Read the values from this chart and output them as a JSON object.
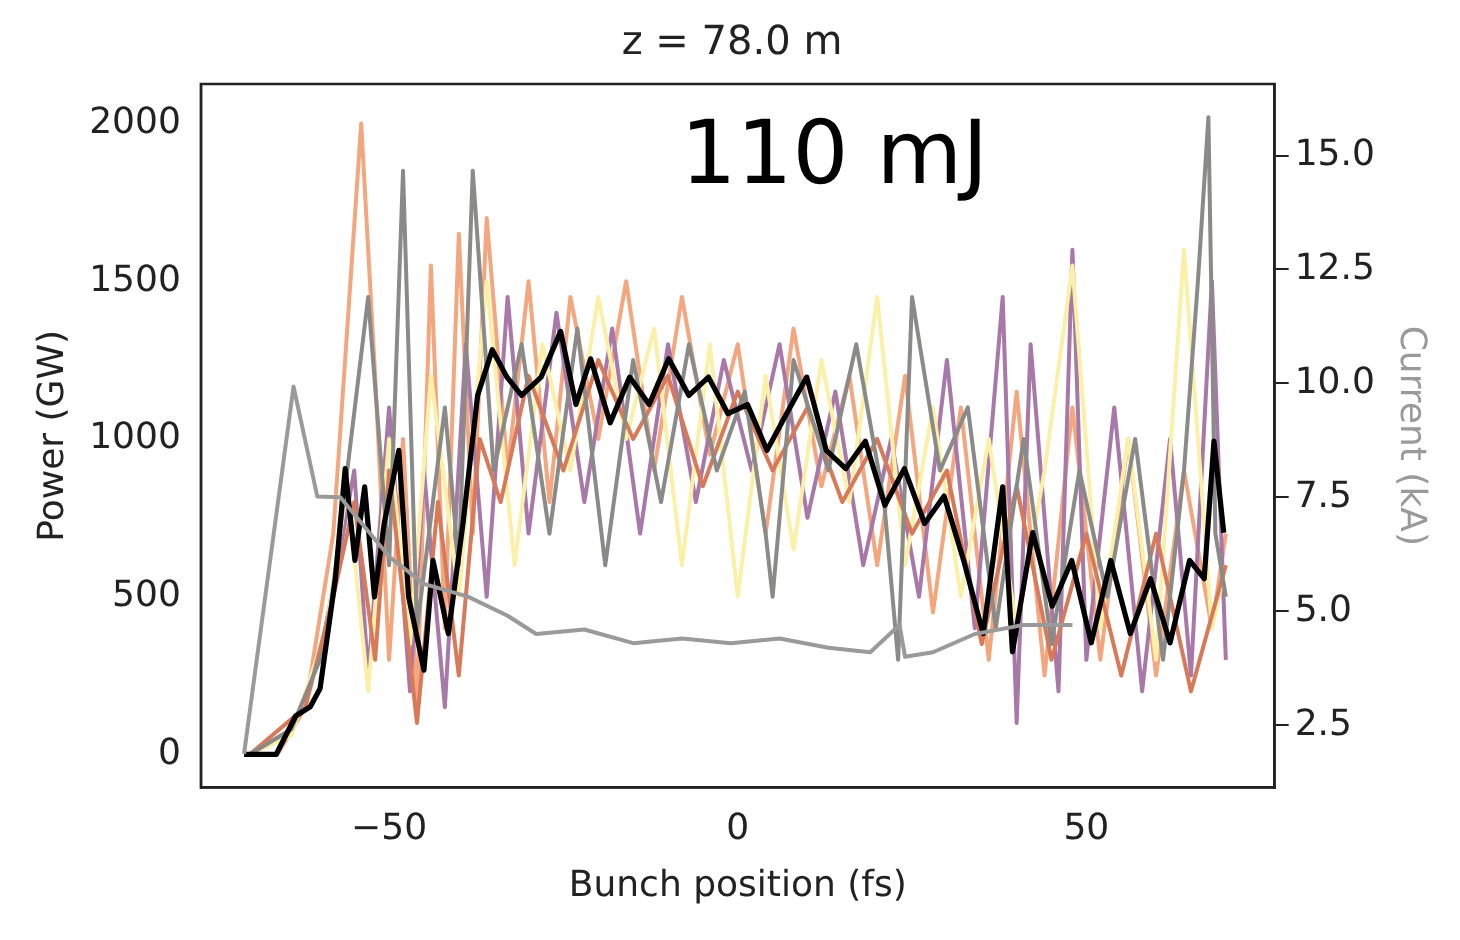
{
  "chart_data": {
    "type": "line",
    "title": "z = 78.0 m",
    "xlabel": "Bunch position (fs)",
    "ylabel": "Power (GW)",
    "y2label": "Current (kA)",
    "annotations": [
      "110 mJ"
    ],
    "xlim": [
      -77,
      77
    ],
    "xticks": [
      {
        "value": -50,
        "label": "−50"
      },
      0,
      50
    ],
    "ylim": [
      -105,
      2125
    ],
    "yticks": [
      0,
      500,
      1000,
      1500,
      2000
    ],
    "y2lim": [
      1.13,
      16.57
    ],
    "y2ticks": [
      2.5,
      {
        "value": 5,
        "label": "5.0"
      },
      7.5,
      {
        "value": 10,
        "label": "10.0"
      },
      12.5,
      {
        "value": 15,
        "label": "15.0"
      }
    ],
    "grid": false,
    "legend": false,
    "marker": "none",
    "line_style": "solid",
    "series": [
      {
        "color": "#f4a77f",
        "x": [
          -70,
          -66,
          -62,
          -58,
          -56,
          -54,
          -52,
          -50,
          -48,
          -46,
          -44,
          -42,
          -40,
          -38,
          -36,
          -33,
          -30,
          -27,
          -24,
          -20,
          -16,
          -12,
          -8,
          -4,
          0,
          4,
          8,
          12,
          16,
          20,
          24,
          28,
          32,
          36,
          40,
          44,
          48,
          52,
          56,
          60,
          64,
          68,
          70
        ],
        "values": [
          0,
          0,
          150,
          700,
          1350,
          2000,
          1200,
          300,
          1000,
          150,
          1550,
          400,
          1650,
          700,
          1700,
          900,
          1500,
          800,
          1450,
          1000,
          1500,
          900,
          1450,
          950,
          1300,
          700,
          1350,
          850,
          1200,
          600,
          1200,
          450,
          1100,
          300,
          1150,
          250,
          1100,
          300,
          1000,
          250,
          900,
          400,
          700
        ]
      },
      {
        "color": "#a878a8",
        "x": [
          -70,
          -64,
          -60,
          -57,
          -55,
          -53,
          -50,
          -47,
          -45,
          -42,
          -39,
          -36,
          -33,
          -30,
          -26,
          -22,
          -18,
          -14,
          -10,
          -6,
          -2,
          2,
          6,
          10,
          14,
          18,
          22,
          26,
          30,
          34,
          38,
          40,
          42,
          46,
          48,
          50,
          54,
          58,
          62,
          65,
          68,
          70
        ],
        "values": [
          0,
          80,
          300,
          650,
          900,
          250,
          1100,
          200,
          900,
          150,
          1300,
          500,
          1450,
          700,
          1400,
          800,
          1350,
          700,
          1300,
          800,
          1250,
          900,
          1300,
          750,
          1150,
          600,
          1000,
          500,
          1250,
          400,
          1450,
          100,
          1300,
          200,
          1600,
          300,
          1100,
          200,
          1000,
          250,
          1500,
          300
        ]
      },
      {
        "color": "#fbf0a8",
        "x": [
          -70,
          -64,
          -59,
          -56,
          -53,
          -50,
          -47,
          -44,
          -40,
          -36,
          -32,
          -28,
          -24,
          -20,
          -16,
          -12,
          -8,
          -4,
          0,
          4,
          8,
          12,
          16,
          20,
          24,
          28,
          32,
          36,
          40,
          44,
          48,
          52,
          56,
          60,
          64,
          68,
          70
        ],
        "values": [
          0,
          60,
          400,
          850,
          200,
          1000,
          350,
          1200,
          500,
          1500,
          600,
          1300,
          900,
          1450,
          1000,
          1350,
          600,
          1300,
          500,
          1200,
          650,
          1250,
          800,
          1450,
          600,
          1100,
          500,
          1000,
          400,
          900,
          1550,
          400,
          1000,
          300,
          1600,
          400,
          600
        ]
      },
      {
        "color": "#d87a5a",
        "x": [
          -70,
          -62,
          -58,
          -55,
          -52,
          -50,
          -46,
          -43,
          -40,
          -37,
          -34,
          -30,
          -25,
          -20,
          -15,
          -10,
          -5,
          0,
          5,
          10,
          15,
          20,
          25,
          30,
          35,
          40,
          45,
          50,
          55,
          60,
          65,
          70
        ],
        "values": [
          0,
          150,
          500,
          800,
          300,
          900,
          100,
          800,
          250,
          1000,
          800,
          1200,
          900,
          1250,
          1000,
          1200,
          850,
          1150,
          900,
          1100,
          800,
          1000,
          700,
          900,
          350,
          850,
          300,
          700,
          250,
          700,
          200,
          600
        ]
      },
      {
        "color": "#8a8a88",
        "x": [
          -70,
          -64,
          -59,
          -56,
          -53,
          -50,
          -48,
          -46,
          -42,
          -40,
          -38,
          -35,
          -31,
          -27,
          -23,
          -19,
          -15,
          -11,
          -7,
          -3,
          1,
          4,
          5,
          8,
          13,
          17,
          21,
          23,
          25,
          29,
          33,
          37,
          41,
          45,
          49,
          53,
          57,
          61,
          64,
          66,
          67.5,
          68.5,
          70
        ],
        "values": [
          0,
          80,
          350,
          900,
          1450,
          600,
          1850,
          400,
          1100,
          600,
          1850,
          900,
          1300,
          700,
          1350,
          600,
          1250,
          800,
          1300,
          900,
          1150,
          700,
          500,
          1250,
          900,
          1300,
          800,
          300,
          1450,
          900,
          1100,
          400,
          1000,
          350,
          900,
          500,
          1000,
          300,
          900,
          1500,
          2020,
          700,
          500
        ]
      },
      {
        "color": "#000000",
        "x": [
          -70.8,
          -66.2,
          -63.4,
          -61.3,
          -59.9,
          -57.7,
          -56.3,
          -54.9,
          -53.5,
          -52.1,
          -50.7,
          -48.6,
          -47.2,
          -45,
          -43.7,
          -41.5,
          -39.4,
          -37.3,
          -35.2,
          -33.1,
          -31,
          -28.2,
          -25.4,
          -23.2,
          -21.1,
          -18.3,
          -15.5,
          -12.7,
          -9.9,
          -7,
          -4.2,
          -1.4,
          1.4,
          4.2,
          7,
          9.9,
          12.7,
          15.5,
          18.3,
          21.1,
          23.9,
          26.8,
          29.6,
          32.4,
          35.2,
          38,
          39.4,
          42.3,
          45.1,
          47.9,
          50.7,
          53.5,
          56.3,
          59.2,
          62,
          64.8,
          66.9,
          68.3,
          69.7
        ],
        "values": [
          0,
          0,
          122,
          151,
          209,
          557,
          906,
          615,
          848,
          499,
          732,
          964,
          499,
          267,
          615,
          383,
          732,
          1138,
          1283,
          1196,
          1138,
          1196,
          1341,
          1109,
          1254,
          1051,
          1196,
          1109,
          1254,
          1138,
          1196,
          1080,
          1109,
          964,
          1080,
          1196,
          964,
          906,
          993,
          790,
          906,
          732,
          819,
          615,
          383,
          848,
          325,
          703,
          470,
          615,
          354,
          615,
          383,
          557,
          354,
          615,
          557,
          993,
          703
        ]
      },
      {
        "color": "#9a9a9a",
        "axis": "y2",
        "x": [
          -70.8,
          -63.7,
          -60.3,
          -57,
          -50,
          -45,
          -38.7,
          -33,
          -28.9,
          -22,
          -15,
          -8,
          -1,
          6,
          13,
          19,
          23.2,
          24,
          28,
          34,
          41,
          48
        ],
        "values": [
          1.87,
          9.93,
          7.52,
          7.5,
          6.2,
          5.6,
          5.32,
          4.9,
          4.5,
          4.6,
          4.3,
          4.4,
          4.3,
          4.4,
          4.2,
          4.1,
          4.7,
          4.0,
          4.1,
          4.5,
          4.7,
          4.7
        ]
      }
    ]
  }
}
